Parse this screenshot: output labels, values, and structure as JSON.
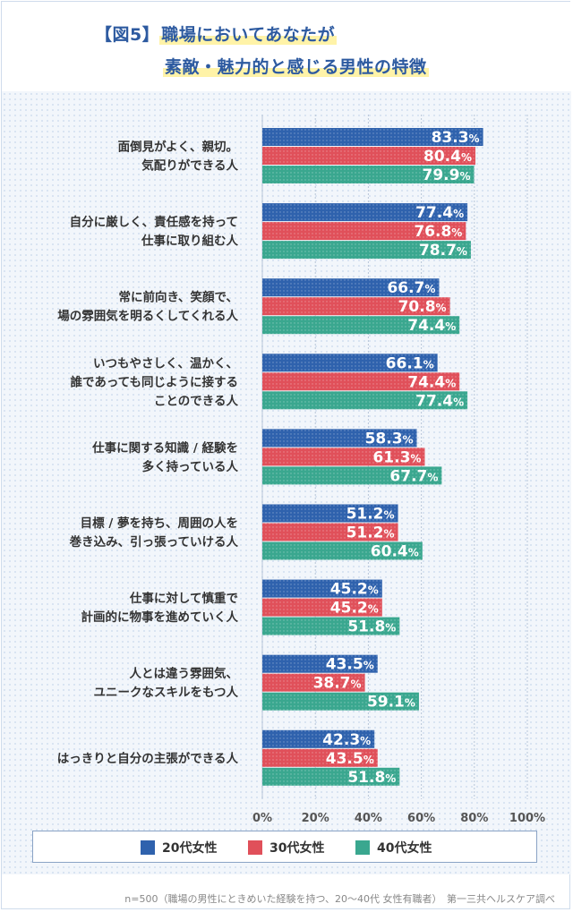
{
  "title": {
    "tag": "【図5】",
    "line1": "職場においてあなたが",
    "line2": "素敵・魅力的と感じる男性の特徴"
  },
  "colors": {
    "series1": "#2f62ad",
    "series2": "#e0505a",
    "series3": "#3aa78f"
  },
  "chart_data": {
    "type": "bar",
    "orientation": "horizontal",
    "categories": [
      [
        "面倒見がよく、親切。",
        "気配りができる人"
      ],
      [
        "自分に厳しく、責任感を持って",
        "仕事に取り組む人"
      ],
      [
        "常に前向き、笑顔で、",
        "場の雰囲気を明るくしてくれる人"
      ],
      [
        "いつもやさしく、温かく、",
        "誰であっても同じように接する",
        "ことのできる人"
      ],
      [
        "仕事に関する知識 / 経験を",
        "多く持っている人"
      ],
      [
        "目標 / 夢を持ち、周囲の人を",
        "巻き込み、引っ張っていける人"
      ],
      [
        "仕事に対して慎重で",
        "計画的に物事を進めていく人"
      ],
      [
        "人とは違う雰囲気、",
        "ユニークなスキルをもつ人"
      ],
      [
        "はっきりと自分の主張ができる人"
      ]
    ],
    "series": [
      {
        "name": "20代女性",
        "values": [
          83.3,
          77.4,
          66.7,
          66.1,
          58.3,
          51.2,
          45.2,
          43.5,
          42.3
        ]
      },
      {
        "name": "30代女性",
        "values": [
          80.4,
          76.8,
          70.8,
          74.4,
          61.3,
          51.2,
          45.2,
          38.7,
          43.5
        ]
      },
      {
        "name": "40代女性",
        "values": [
          79.9,
          78.7,
          74.4,
          77.4,
          67.7,
          60.4,
          51.8,
          59.1,
          51.8
        ]
      }
    ],
    "xlim": [
      0,
      100
    ],
    "xticks": [
      "0%",
      "20%",
      "40%",
      "60%",
      "80%",
      "100%"
    ],
    "value_suffix": "%",
    "grid": true,
    "legend": "bottom"
  },
  "footer": "n=500（職場の男性にときめいた経験を持つ、20〜40代 女性有職者）　第一三共ヘルスケア調べ"
}
